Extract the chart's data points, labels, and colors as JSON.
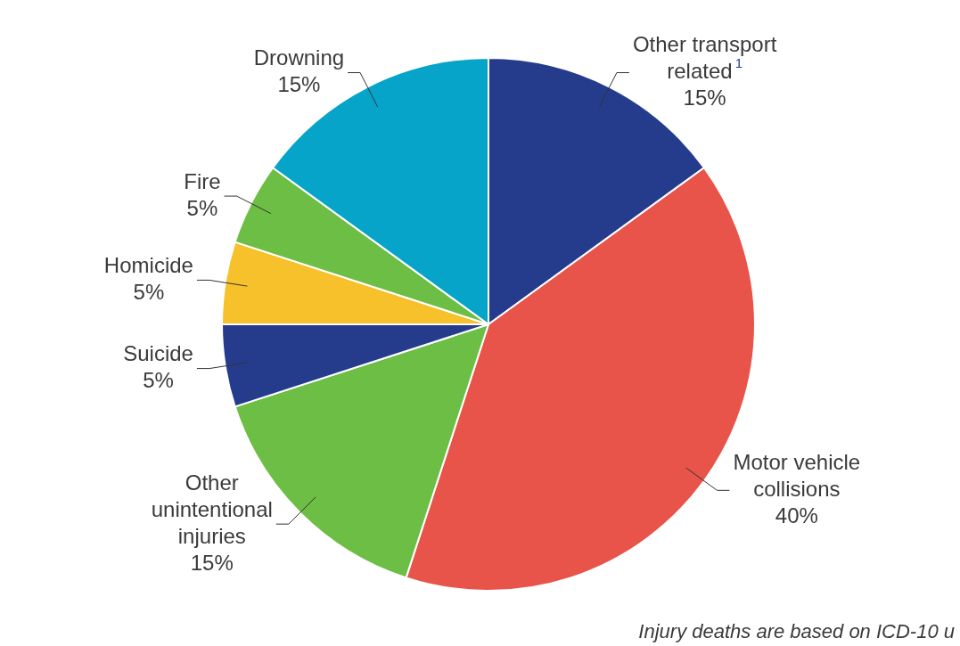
{
  "chart_data": {
    "type": "pie",
    "categories": [
      "Other transport related$^{1}$",
      "Motor vehicle collisions",
      "Other unintentional injuries",
      "Suicide",
      "Homicide",
      "Fire",
      "Drowning"
    ],
    "values": [
      15,
      40,
      15,
      5,
      5,
      5,
      15
    ],
    "colors": [
      "#253c8c",
      "#e8534a",
      "#6dbe45",
      "#253c8c",
      "#f6c12a",
      "#6dbe45",
      "#06a4c9"
    ],
    "value_labels": [
      "15%",
      "40%",
      "15%",
      "5%",
      "5%",
      "5%",
      "15%"
    ],
    "legend": false,
    "annotations": [
      "Injury deaths are based on ICD-10 u"
    ]
  }
}
